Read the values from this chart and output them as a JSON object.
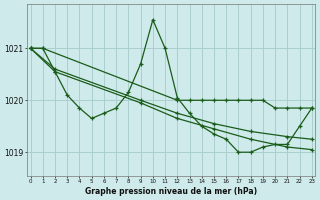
{
  "title": "Graphe pression niveau de la mer (hPa)",
  "bg_color": "#ceeaea",
  "grid_color": "#aacfcf",
  "line_color": "#1a5c1a",
  "x_ticks": [
    0,
    1,
    2,
    3,
    4,
    5,
    6,
    7,
    8,
    9,
    10,
    11,
    12,
    13,
    14,
    15,
    16,
    17,
    18,
    19,
    20,
    21,
    22,
    23
  ],
  "y_ticks": [
    1019,
    1020,
    1021
  ],
  "ylim": [
    1018.55,
    1021.85
  ],
  "xlim": [
    -0.3,
    23.3
  ],
  "series1": {
    "x": [
      0,
      1,
      12,
      13,
      14,
      15,
      16,
      17,
      18,
      19,
      20,
      21,
      22,
      23
    ],
    "y": [
      1021.0,
      1021.0,
      1020.0,
      1020.0,
      1020.0,
      1020.0,
      1020.0,
      1020.0,
      1020.0,
      1020.0,
      1019.85,
      1019.85,
      1019.85,
      1019.85
    ]
  },
  "series2": {
    "x": [
      0,
      1,
      2,
      3,
      4,
      5,
      6,
      7,
      8,
      9,
      10,
      11,
      12,
      13,
      14,
      15,
      16,
      17,
      18,
      19,
      20,
      21,
      22,
      23
    ],
    "y": [
      1021.0,
      1021.0,
      1020.55,
      1020.1,
      1019.85,
      1019.65,
      1019.75,
      1019.85,
      1020.15,
      1020.7,
      1021.55,
      1021.0,
      1020.05,
      1019.75,
      1019.5,
      1019.35,
      1019.25,
      1019.0,
      1019.0,
      1019.1,
      1019.15,
      1019.15,
      1019.5,
      1019.85
    ]
  },
  "series3": {
    "x": [
      0,
      2,
      9,
      12,
      15,
      18,
      21,
      23
    ],
    "y": [
      1021.0,
      1020.6,
      1020.0,
      1019.75,
      1019.55,
      1019.4,
      1019.3,
      1019.25
    ]
  },
  "series4": {
    "x": [
      0,
      2,
      9,
      12,
      15,
      18,
      21,
      23
    ],
    "y": [
      1021.0,
      1020.55,
      1019.95,
      1019.65,
      1019.45,
      1019.25,
      1019.1,
      1019.05
    ]
  }
}
